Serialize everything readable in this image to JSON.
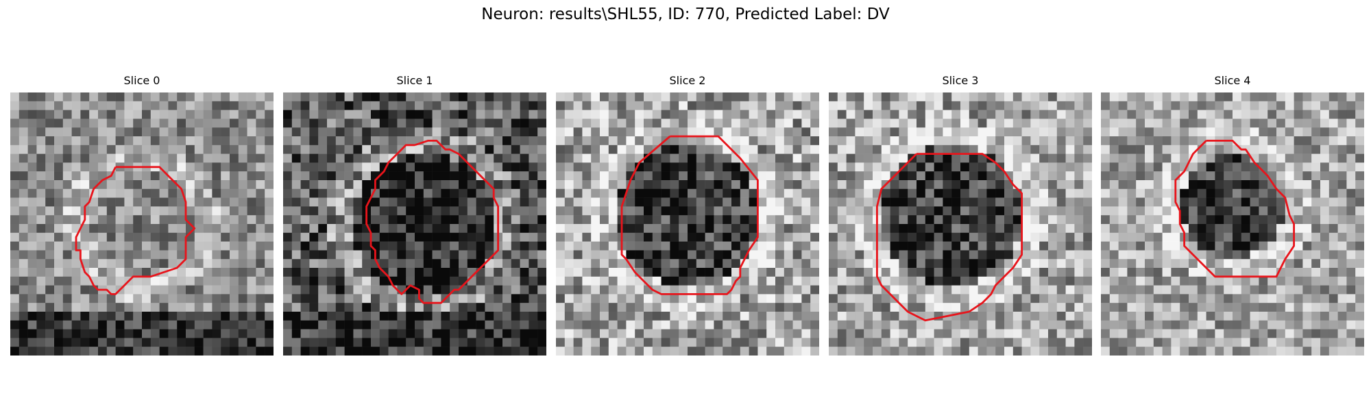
{
  "figure": {
    "title": "Neuron: results\\SHL55, ID: 770, Predicted Label: DV"
  },
  "panels": [
    {
      "title": "Slice 0",
      "seed": 11,
      "contrast": 0.55
    },
    {
      "title": "Slice 1",
      "seed": 23,
      "contrast": 0.75
    },
    {
      "title": "Slice 2",
      "seed": 37,
      "contrast": 0.7
    },
    {
      "title": "Slice 3",
      "seed": 41,
      "contrast": 0.65
    },
    {
      "title": "Slice 4",
      "seed": 59,
      "contrast": 0.6
    }
  ],
  "contour_color": "#e8141b"
}
